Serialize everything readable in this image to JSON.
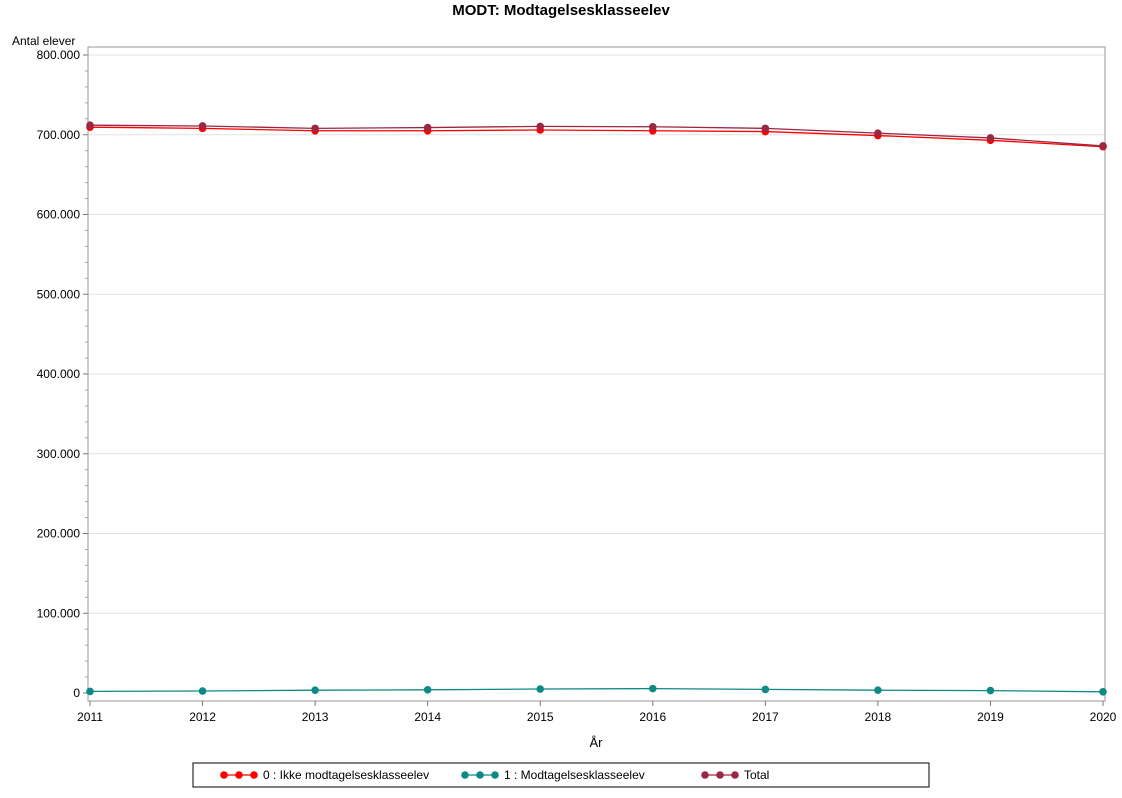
{
  "chart_data": {
    "type": "line",
    "title": "MODT: Modtagelsesklasseelev",
    "xlabel": "År",
    "ylabel": "Antal elever",
    "x": [
      2011,
      2012,
      2013,
      2014,
      2015,
      2016,
      2017,
      2018,
      2019,
      2020
    ],
    "ylim": [
      0,
      800000
    ],
    "yticks": [
      0,
      100000,
      200000,
      300000,
      400000,
      500000,
      600000,
      700000,
      800000
    ],
    "ytick_labels": [
      "0",
      "100.000",
      "200.000",
      "300.000",
      "400.000",
      "500.000",
      "600.000",
      "700.000",
      "800.000"
    ],
    "grid": true,
    "legend_position": "bottom",
    "series": [
      {
        "name": "0 : Ikke modtagelsesklasseelev",
        "color": "#ff0000",
        "values": [
          709500,
          708000,
          705000,
          705000,
          706000,
          705000,
          704000,
          699000,
          693000,
          685000
        ]
      },
      {
        "name": "1 : Modtagelsesklasseelev",
        "color": "#0e8a84",
        "values": [
          2000,
          2500,
          3500,
          4000,
          5000,
          5500,
          4500,
          3500,
          3000,
          1500
        ]
      },
      {
        "name": "Total",
        "color": "#9b2743",
        "values": [
          712000,
          711000,
          708000,
          709000,
          710500,
          710000,
          708000,
          702000,
          696000,
          686000
        ]
      }
    ]
  }
}
